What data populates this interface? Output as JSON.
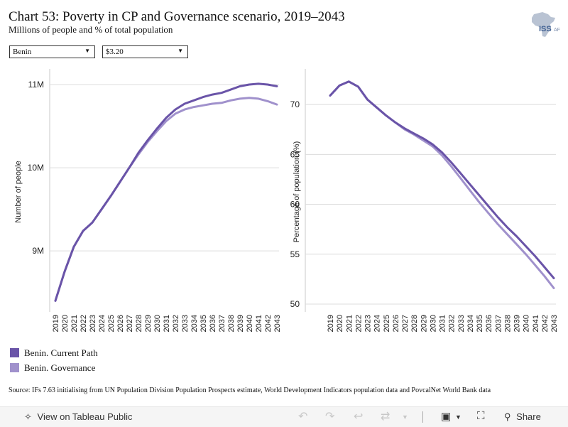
{
  "header": {
    "title": "Chart 53: Poverty in CP and Governance scenario, 2019–2043",
    "subtitle": "Millions of people and % of total population",
    "logo_text": "ISS AF"
  },
  "filters": {
    "country": "Benin",
    "threshold": "$3.20"
  },
  "legend": [
    {
      "label": "Benin. Current Path",
      "color": "#6a54a8"
    },
    {
      "label": "Benin. Governance",
      "color": "#a091cc"
    }
  ],
  "source": "Source: IFs 7.63 initialising from UN Population Division Population Prospects estimate, World Development Indicators population data and PovcalNet World Bank data",
  "toolbar": {
    "view_label": "View on Tableau Public",
    "share_label": "Share"
  },
  "chart_data": [
    {
      "type": "line",
      "ylabel": "Number of people",
      "xlabel": "",
      "x": [
        "2019",
        "2020",
        "2021",
        "2022",
        "2023",
        "2024",
        "2025",
        "2026",
        "2027",
        "2028",
        "2029",
        "2030",
        "2031",
        "2032",
        "2033",
        "2034",
        "2035",
        "2036",
        "2037",
        "2038",
        "2039",
        "2040",
        "2041",
        "2042",
        "2043"
      ],
      "ylim": [
        8.3,
        11.12
      ],
      "yticks": [
        {
          "value": 9,
          "label": "9M"
        },
        {
          "value": 10,
          "label": "10M"
        },
        {
          "value": 11,
          "label": "11M"
        }
      ],
      "series": [
        {
          "name": "Benin. Current Path",
          "color": "#6a54a8",
          "values": [
            8.4,
            8.75,
            9.05,
            9.24,
            9.34,
            9.5,
            9.66,
            9.83,
            10.0,
            10.18,
            10.33,
            10.47,
            10.6,
            10.7,
            10.77,
            10.81,
            10.85,
            10.88,
            10.9,
            10.94,
            10.98,
            11.0,
            11.01,
            11.0,
            10.98
          ]
        },
        {
          "name": "Benin. Governance",
          "color": "#a091cc",
          "values": [
            8.4,
            8.75,
            9.05,
            9.24,
            9.34,
            9.5,
            9.66,
            9.83,
            10.0,
            10.16,
            10.31,
            10.44,
            10.56,
            10.65,
            10.7,
            10.73,
            10.75,
            10.77,
            10.78,
            10.81,
            10.83,
            10.84,
            10.83,
            10.8,
            10.76
          ]
        }
      ]
    },
    {
      "type": "line",
      "ylabel": "Percentage of population (%)",
      "xlabel": "",
      "x": [
        "2019",
        "2020",
        "2021",
        "2022",
        "2023",
        "2024",
        "2025",
        "2026",
        "2027",
        "2028",
        "2029",
        "2030",
        "2031",
        "2032",
        "2033",
        "2034",
        "2035",
        "2036",
        "2037",
        "2038",
        "2039",
        "2040",
        "2041",
        "2042",
        "2043"
      ],
      "ylim": [
        49.5,
        73
      ],
      "yticks": [
        {
          "value": 50,
          "label": "50"
        },
        {
          "value": 55,
          "label": "55"
        },
        {
          "value": 60,
          "label": "60"
        },
        {
          "value": 65,
          "label": "65"
        },
        {
          "value": 70,
          "label": "70"
        }
      ],
      "series": [
        {
          "name": "Benin. Current Path",
          "color": "#6a54a8",
          "values": [
            70.9,
            71.9,
            72.3,
            71.8,
            70.5,
            69.7,
            68.9,
            68.2,
            67.6,
            67.1,
            66.6,
            66.0,
            65.2,
            64.2,
            63.1,
            62.0,
            60.9,
            59.8,
            58.7,
            57.7,
            56.8,
            55.8,
            54.8,
            53.7,
            52.6
          ]
        },
        {
          "name": "Benin. Governance",
          "color": "#a091cc",
          "values": [
            70.9,
            71.9,
            72.3,
            71.8,
            70.5,
            69.7,
            68.9,
            68.2,
            67.5,
            67.0,
            66.4,
            65.8,
            64.9,
            63.8,
            62.6,
            61.4,
            60.2,
            59.1,
            58.0,
            57.0,
            56.0,
            55.0,
            53.9,
            52.8,
            51.6
          ]
        }
      ]
    }
  ]
}
